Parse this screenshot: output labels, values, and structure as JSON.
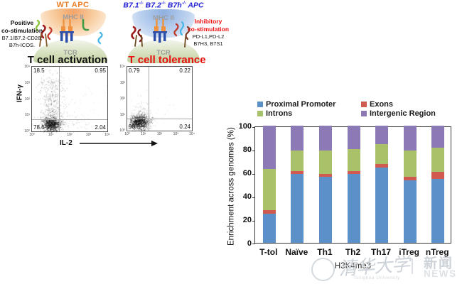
{
  "schematic": {
    "left": {
      "apc_title": "WT  APC",
      "mhc_label": "MHC II",
      "tcr_label": "TCR",
      "costim_bold": [
        "Positive",
        "co-stimulation"
      ],
      "costim_lines": [
        "B7.1/B7.2-CD28;",
        "B7h-ICOS."
      ],
      "panel_title": "T cell activation"
    },
    "right": {
      "apc_title_parts": [
        {
          "text": "B7.1"
        },
        {
          "sup": "-/-"
        },
        {
          "text": " B7.2"
        },
        {
          "sup": "-/-"
        },
        {
          "text": " B7h"
        },
        {
          "sup": "-/-"
        },
        {
          "text": " APC"
        }
      ],
      "mhc_label": "MHC II",
      "tcr_label": "TCR",
      "costim_bold": [
        "Inhibitory",
        "co-stimulation"
      ],
      "costim_lines": [
        "PD-L1,PD-L2",
        "B7H3, B7S1"
      ],
      "panel_title": "T cell tolerance"
    }
  },
  "flow": {
    "y_axis_label": "IFN-γ",
    "x_axis_label": "IL-2",
    "y_ticks": [
      "10⁴",
      "10³",
      "10²",
      "10¹",
      "10⁰"
    ],
    "x_ticks": [
      "10⁰",
      "10¹",
      "10²",
      "10³",
      "10⁴"
    ],
    "activation": {
      "tl": "18.5",
      "tr": "0.95",
      "bl": "78.6",
      "br": "2.04"
    },
    "tolerance": {
      "tl": "0.79",
      "tr": "0.22",
      "bl": "98.8",
      "br": "0.24"
    },
    "scatter": {
      "activation": [
        [
          27,
          81,
          6,
          4.5,
          600,
          0.9
        ],
        [
          27,
          78,
          10,
          8,
          250,
          0.4
        ],
        [
          28,
          50,
          8,
          18,
          320,
          0.45
        ],
        [
          28,
          22,
          9,
          8,
          80,
          0.35
        ],
        [
          55,
          80,
          20,
          7,
          90,
          0.3
        ],
        [
          50,
          55,
          28,
          22,
          50,
          0.2
        ]
      ],
      "tolerance": [
        [
          17,
          78,
          6,
          5,
          650,
          0.9
        ],
        [
          19,
          74,
          10,
          8,
          220,
          0.35
        ],
        [
          20,
          58,
          8,
          8,
          40,
          0.25
        ],
        [
          35,
          70,
          18,
          12,
          30,
          0.2
        ]
      ]
    }
  },
  "chart_data": {
    "type": "bar",
    "stacked": true,
    "title": "",
    "xlabel": "H3K4me3",
    "ylabel": "Enrichment across genomes (%)",
    "ylim": [
      0,
      100
    ],
    "yticks": [
      0,
      20,
      40,
      60,
      80,
      100
    ],
    "grid": false,
    "legend_position": "top",
    "categories": [
      "T-tol",
      "Naïve",
      "Th1",
      "Th2",
      "Th17",
      "iTreg",
      "nTreg"
    ],
    "series": [
      {
        "name": "Proximal Promoter",
        "color": "#5B91C8",
        "values": [
          25,
          58.5,
          56.5,
          58.5,
          64.5,
          53.5,
          54.5
        ]
      },
      {
        "name": "Exons",
        "color": "#D05A50",
        "values": [
          3,
          3,
          2.5,
          3,
          2.5,
          3,
          6
        ]
      },
      {
        "name": "Introns",
        "color": "#A9C169",
        "values": [
          35,
          17,
          20,
          18.5,
          17.5,
          22.5,
          20.5
        ]
      },
      {
        "name": "Intergenic Region",
        "color": "#8C7AB6",
        "values": [
          37,
          21.5,
          21,
          20,
          15.5,
          21,
          19
        ]
      }
    ],
    "stack_order_bottom_to_top": [
      "Proximal Promoter",
      "Exons",
      "Introns",
      "Intergenic Region"
    ],
    "legend_columns": [
      [
        "Proximal Promoter",
        "Introns"
      ],
      [
        "Exons",
        "Intergenic Region"
      ]
    ]
  },
  "watermark": {
    "script_text": "清华大学",
    "sub_text": "Tsinghua University",
    "divider": "|",
    "cn_right": "新闻",
    "en_right": "NEWS"
  }
}
